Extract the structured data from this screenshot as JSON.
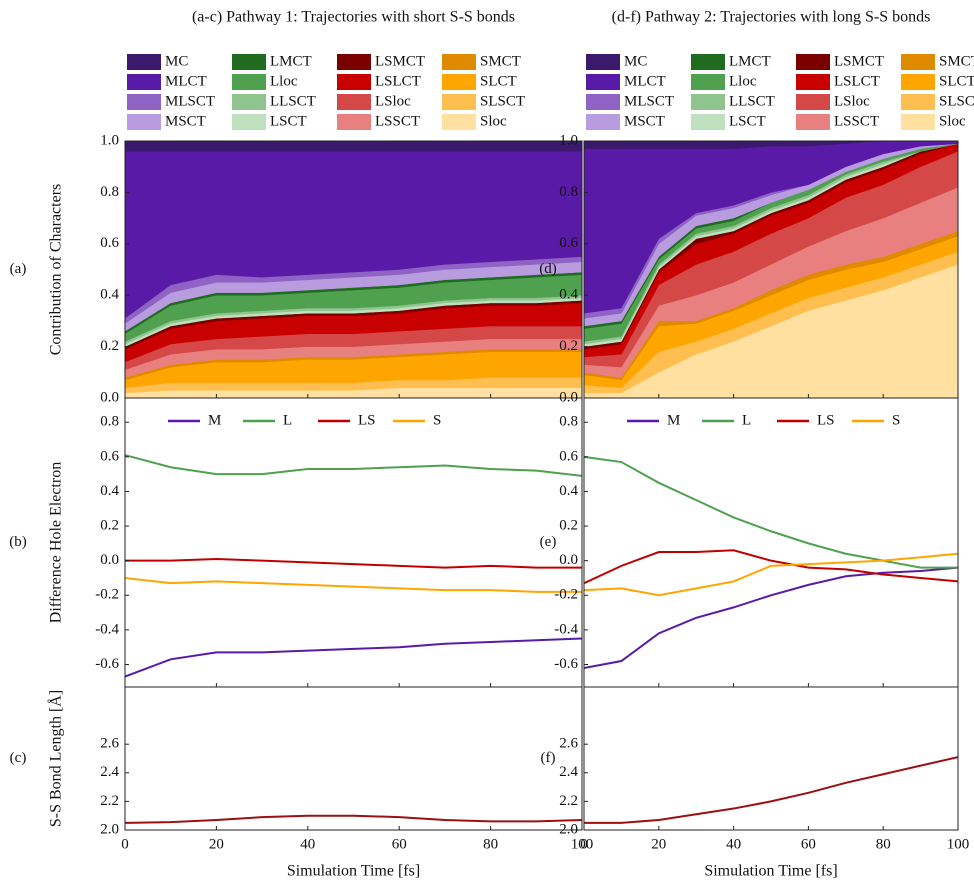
{
  "chart_data": [
    {
      "type": "area",
      "title": "(a-c) Pathway 1: Trajectories with short S-S bonds",
      "panel": "(a)",
      "ylabel": "Contribution of Characters",
      "x": [
        0,
        10,
        20,
        30,
        40,
        50,
        60,
        70,
        80,
        90,
        100
      ],
      "xlim": [
        0,
        100
      ],
      "xticks": [
        0,
        20,
        40,
        60,
        80,
        100
      ],
      "ylim": [
        0,
        1
      ],
      "yticks": [
        {
          "value": 0,
          "label": "0.0"
        },
        0.2,
        0.4,
        0.6,
        0.8,
        {
          "value": 1,
          "label": "1.0"
        }
      ],
      "series": [
        {
          "name": "MC",
          "color": "#3b1a6e",
          "values": [
            0.04,
            0.04,
            0.04,
            0.04,
            0.04,
            0.04,
            0.04,
            0.04,
            0.04,
            0.04,
            0.04
          ]
        },
        {
          "name": "MLCT",
          "color": "#5a1aa8",
          "values": [
            0.65,
            0.52,
            0.48,
            0.49,
            0.48,
            0.47,
            0.46,
            0.44,
            0.43,
            0.42,
            0.41
          ]
        },
        {
          "name": "MLSCT",
          "color": "#8e63c4",
          "values": [
            0.02,
            0.03,
            0.03,
            0.02,
            0.02,
            0.02,
            0.02,
            0.02,
            0.02,
            0.02,
            0.02
          ]
        },
        {
          "name": "MSCT",
          "color": "#b99be0",
          "values": [
            0.03,
            0.04,
            0.04,
            0.04,
            0.04,
            0.04,
            0.04,
            0.04,
            0.04,
            0.04,
            0.04
          ]
        },
        {
          "name": "LMCT",
          "color": "#1f6b1f",
          "values": [
            0.01,
            0.01,
            0.01,
            0.01,
            0.01,
            0.01,
            0.01,
            0.01,
            0.01,
            0.01,
            0.01
          ]
        },
        {
          "name": "Lloc",
          "color": "#4fa04f",
          "values": [
            0.03,
            0.06,
            0.07,
            0.06,
            0.06,
            0.07,
            0.07,
            0.07,
            0.07,
            0.08,
            0.08
          ]
        },
        {
          "name": "LLSCT",
          "color": "#8fc48f",
          "values": [
            0.01,
            0.01,
            0.01,
            0.01,
            0.01,
            0.01,
            0.01,
            0.01,
            0.01,
            0.01,
            0.01
          ]
        },
        {
          "name": "LSCT",
          "color": "#bfe0bf",
          "values": [
            0.01,
            0.01,
            0.01,
            0.01,
            0.01,
            0.01,
            0.01,
            0.01,
            0.01,
            0.01,
            0.01
          ]
        },
        {
          "name": "LSMCT",
          "color": "#7a0000",
          "values": [
            0.01,
            0.01,
            0.01,
            0.01,
            0.01,
            0.01,
            0.01,
            0.01,
            0.01,
            0.01,
            0.01
          ]
        },
        {
          "name": "LSLCT",
          "color": "#c80000",
          "values": [
            0.05,
            0.06,
            0.07,
            0.07,
            0.07,
            0.07,
            0.07,
            0.08,
            0.08,
            0.08,
            0.09
          ]
        },
        {
          "name": "LSloc",
          "color": "#d44848",
          "values": [
            0.03,
            0.04,
            0.04,
            0.05,
            0.05,
            0.05,
            0.05,
            0.05,
            0.05,
            0.05,
            0.05
          ]
        },
        {
          "name": "LSSCT",
          "color": "#e88080",
          "values": [
            0.03,
            0.04,
            0.04,
            0.04,
            0.04,
            0.04,
            0.04,
            0.04,
            0.04,
            0.04,
            0.04
          ]
        },
        {
          "name": "SMCT",
          "color": "#e08a00",
          "values": [
            0.01,
            0.01,
            0.01,
            0.01,
            0.01,
            0.01,
            0.01,
            0.01,
            0.01,
            0.01,
            0.01
          ]
        },
        {
          "name": "SLCT",
          "color": "#ffa500",
          "values": [
            0.03,
            0.06,
            0.08,
            0.08,
            0.09,
            0.09,
            0.09,
            0.1,
            0.1,
            0.1,
            0.1
          ]
        },
        {
          "name": "SLSCT",
          "color": "#ffbf50",
          "values": [
            0.02,
            0.03,
            0.03,
            0.03,
            0.03,
            0.03,
            0.03,
            0.03,
            0.04,
            0.04,
            0.04
          ]
        },
        {
          "name": "Sloc",
          "color": "#ffe0a0",
          "values": [
            0.02,
            0.03,
            0.03,
            0.03,
            0.03,
            0.03,
            0.04,
            0.04,
            0.04,
            0.04,
            0.04
          ]
        }
      ]
    },
    {
      "type": "line",
      "panel": "(b)",
      "ylabel": "Difference Hole Electron",
      "x": [
        0,
        10,
        20,
        30,
        40,
        50,
        60,
        70,
        80,
        90,
        100
      ],
      "xlim": [
        0,
        100
      ],
      "xticks": [
        0,
        20,
        40,
        60,
        80,
        100
      ],
      "ylim": [
        -0.73,
        0.94
      ],
      "yticks": [
        -0.6,
        -0.4,
        -0.2,
        {
          "value": 0,
          "label": "0.0"
        },
        0.2,
        0.4,
        0.6,
        0.8
      ],
      "series": [
        {
          "name": "M",
          "color": "#5a1aa8",
          "values": [
            -0.67,
            -0.57,
            -0.53,
            -0.53,
            -0.52,
            -0.51,
            -0.5,
            -0.48,
            -0.47,
            -0.46,
            -0.45
          ]
        },
        {
          "name": "L",
          "color": "#4fa04f",
          "values": [
            0.61,
            0.54,
            0.5,
            0.5,
            0.53,
            0.53,
            0.54,
            0.55,
            0.53,
            0.52,
            0.49
          ]
        },
        {
          "name": "LS",
          "color": "#c00000",
          "values": [
            0,
            0,
            0.01,
            0,
            -0.01,
            -0.02,
            -0.03,
            -0.04,
            -0.03,
            -0.04,
            -0.04
          ]
        },
        {
          "name": "S",
          "color": "#ffa500",
          "values": [
            -0.1,
            -0.13,
            -0.12,
            -0.13,
            -0.14,
            -0.15,
            -0.16,
            -0.17,
            -0.17,
            -0.18,
            -0.18
          ]
        }
      ]
    },
    {
      "type": "line",
      "panel": "(c)",
      "ylabel": "S-S Bond Length [Å]",
      "xlabel": "Simulation Time [fs]",
      "x": [
        0,
        10,
        20,
        30,
        40,
        50,
        60,
        70,
        80,
        90,
        100
      ],
      "xlim": [
        0,
        100
      ],
      "xticks": [
        0,
        20,
        40,
        60,
        80,
        100
      ],
      "ylim": [
        2,
        3
      ],
      "yticks": [
        {
          "value": 2,
          "label": "2.0"
        },
        2.2,
        2.4,
        2.6
      ],
      "series": [
        {
          "color": "#9b1010",
          "values": [
            2.05,
            2.055,
            2.07,
            2.09,
            2.1,
            2.1,
            2.09,
            2.07,
            2.06,
            2.06,
            2.07
          ]
        }
      ]
    },
    {
      "type": "area",
      "title": "(d-f) Pathway 2: Trajectories with long S-S bonds",
      "panel": "(d)",
      "x": [
        0,
        10,
        20,
        30,
        40,
        50,
        60,
        70,
        80,
        90,
        100
      ],
      "xlim": [
        0,
        100
      ],
      "xticks": [
        0,
        20,
        40,
        60,
        80,
        100
      ],
      "ylim": [
        0,
        1
      ],
      "yticks": [
        {
          "value": 0,
          "label": "0.0"
        },
        0.2,
        0.4,
        0.6,
        0.8,
        {
          "value": 1,
          "label": "1.0"
        }
      ],
      "series": [
        {
          "name": "MC",
          "color": "#3b1a6e",
          "values": [
            0.03,
            0.03,
            0.03,
            0.03,
            0.03,
            0.02,
            0.02,
            0.01,
            0,
            0,
            0
          ]
        },
        {
          "name": "MLCT",
          "color": "#5a1aa8",
          "values": [
            0.64,
            0.62,
            0.35,
            0.25,
            0.22,
            0.18,
            0.15,
            0.09,
            0.05,
            0.02,
            0.01
          ]
        },
        {
          "name": "MLSCT",
          "color": "#8e63c4",
          "values": [
            0.02,
            0.02,
            0.02,
            0.01,
            0.01,
            0.01,
            0,
            0,
            0,
            0,
            0
          ]
        },
        {
          "name": "MSCT",
          "color": "#b99be0",
          "values": [
            0.03,
            0.03,
            0.05,
            0.04,
            0.04,
            0.03,
            0.02,
            0.02,
            0.02,
            0.01,
            0
          ]
        },
        {
          "name": "LMCT",
          "color": "#1f6b1f",
          "values": [
            0.01,
            0.01,
            0.01,
            0.01,
            0.01,
            0,
            0,
            0,
            0,
            0,
            0
          ]
        },
        {
          "name": "Lloc",
          "color": "#4fa04f",
          "values": [
            0.05,
            0.05,
            0.02,
            0.02,
            0.02,
            0.02,
            0.02,
            0.01,
            0.01,
            0.01,
            0
          ]
        },
        {
          "name": "LLSCT",
          "color": "#8fc48f",
          "values": [
            0.01,
            0.01,
            0.01,
            0.01,
            0.01,
            0.01,
            0.01,
            0.01,
            0.01,
            0,
            0
          ]
        },
        {
          "name": "LSCT",
          "color": "#bfe0bf",
          "values": [
            0.01,
            0.01,
            0.01,
            0.01,
            0.01,
            0.01,
            0.01,
            0.01,
            0.01,
            0,
            0
          ]
        },
        {
          "name": "LSMCT",
          "color": "#7a0000",
          "values": [
            0.01,
            0.01,
            0.01,
            0.02,
            0.01,
            0.01,
            0.01,
            0.01,
            0.01,
            0.01,
            0
          ]
        },
        {
          "name": "LSLCT",
          "color": "#c80000",
          "values": [
            0.03,
            0.04,
            0.05,
            0.08,
            0.07,
            0.07,
            0.06,
            0.06,
            0.06,
            0.05,
            0.03
          ]
        },
        {
          "name": "LSloc",
          "color": "#d44848",
          "values": [
            0.03,
            0.05,
            0.08,
            0.12,
            0.12,
            0.12,
            0.11,
            0.13,
            0.13,
            0.14,
            0.14
          ]
        },
        {
          "name": "LSSCT",
          "color": "#e88080",
          "values": [
            0.03,
            0.04,
            0.06,
            0.1,
            0.1,
            0.1,
            0.11,
            0.13,
            0.15,
            0.16,
            0.17
          ]
        },
        {
          "name": "SMCT",
          "color": "#e08a00",
          "values": [
            0.01,
            0.01,
            0.02,
            0.01,
            0.01,
            0.02,
            0.02,
            0.02,
            0.02,
            0.02,
            0.02
          ]
        },
        {
          "name": "SLCT",
          "color": "#ffa500",
          "values": [
            0.04,
            0.03,
            0.1,
            0.07,
            0.07,
            0.07,
            0.07,
            0.07,
            0.06,
            0.06,
            0.06
          ]
        },
        {
          "name": "SLSCT",
          "color": "#ffbf50",
          "values": [
            0.03,
            0.02,
            0.08,
            0.05,
            0.05,
            0.05,
            0.05,
            0.05,
            0.05,
            0.05,
            0.05
          ]
        },
        {
          "name": "Sloc",
          "color": "#ffe0a0",
          "values": [
            0.02,
            0.02,
            0.1,
            0.17,
            0.22,
            0.28,
            0.34,
            0.38,
            0.42,
            0.47,
            0.52
          ]
        }
      ]
    },
    {
      "type": "line",
      "panel": "(e)",
      "x": [
        0,
        10,
        20,
        30,
        40,
        50,
        60,
        70,
        80,
        90,
        100
      ],
      "xlim": [
        0,
        100
      ],
      "xticks": [
        0,
        20,
        40,
        60,
        80,
        100
      ],
      "ylim": [
        -0.73,
        0.94
      ],
      "yticks": [
        -0.6,
        -0.4,
        -0.2,
        {
          "value": 0,
          "label": "0.0"
        },
        0.2,
        0.4,
        0.6,
        0.8
      ],
      "series": [
        {
          "name": "M",
          "color": "#5a1aa8",
          "values": [
            -0.62,
            -0.58,
            -0.42,
            -0.33,
            -0.27,
            -0.2,
            -0.14,
            -0.09,
            -0.07,
            -0.06,
            -0.04
          ]
        },
        {
          "name": "L",
          "color": "#4fa04f",
          "values": [
            0.6,
            0.57,
            0.45,
            0.35,
            0.25,
            0.17,
            0.1,
            0.04,
            0,
            -0.04,
            -0.04
          ]
        },
        {
          "name": "LS",
          "color": "#c00000",
          "values": [
            -0.13,
            -0.03,
            0.05,
            0.05,
            0.06,
            0,
            -0.04,
            -0.05,
            -0.08,
            -0.1,
            -0.12
          ]
        },
        {
          "name": "S",
          "color": "#ffa500",
          "values": [
            -0.17,
            -0.16,
            -0.2,
            -0.16,
            -0.12,
            -0.03,
            -0.02,
            -0.01,
            0,
            0.02,
            0.04
          ]
        }
      ]
    },
    {
      "type": "line",
      "panel": "(f)",
      "xlabel": "Simulation Time [fs]",
      "x": [
        0,
        10,
        20,
        30,
        40,
        50,
        60,
        70,
        80,
        90,
        100
      ],
      "xlim": [
        0,
        100
      ],
      "xticks": [
        0,
        20,
        40,
        60,
        80,
        100
      ],
      "ylim": [
        2,
        3
      ],
      "yticks": [
        {
          "value": 2,
          "label": "2.0"
        },
        2.2,
        2.4,
        2.6
      ],
      "series": [
        {
          "color": "#9b1010",
          "values": [
            2.05,
            2.05,
            2.07,
            2.11,
            2.15,
            2.2,
            2.26,
            2.33,
            2.39,
            2.45,
            2.51
          ]
        }
      ]
    }
  ]
}
